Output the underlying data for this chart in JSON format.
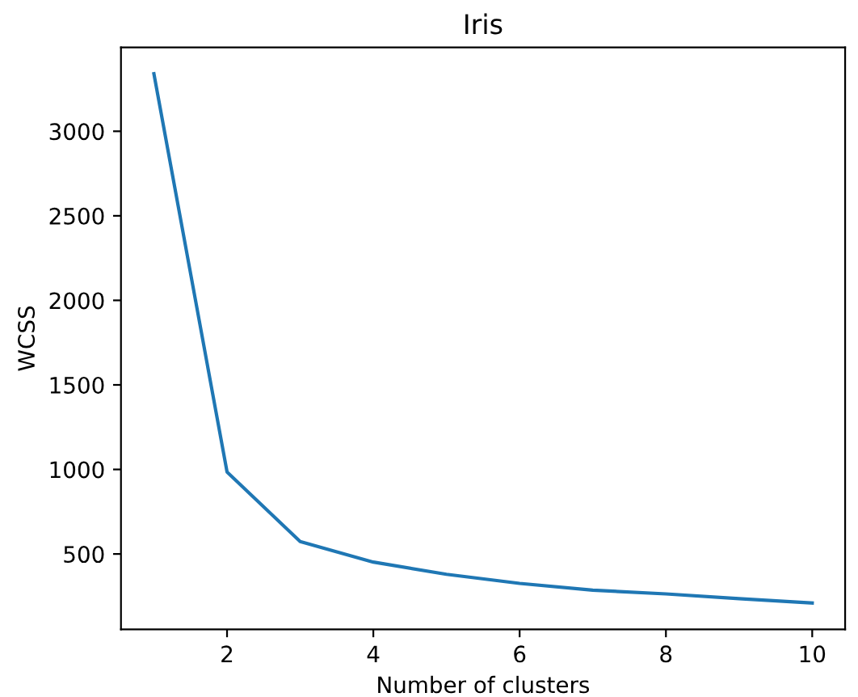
{
  "chart_data": {
    "type": "line",
    "title": "Iris",
    "xlabel": "Number of clusters",
    "ylabel": "WCSS",
    "x": [
      1,
      2,
      3,
      4,
      5,
      6,
      7,
      8,
      9,
      10
    ],
    "series": [
      {
        "color": "#1f77b4",
        "values": [
          3340,
          985,
          573,
          452,
          380,
          326,
          286,
          264,
          236,
          210
        ]
      }
    ],
    "xlim": [
      0.55,
      10.45
    ],
    "xticks": [
      2,
      4,
      6,
      8,
      10
    ],
    "ylim": [
      54,
      3496
    ],
    "yticks": [
      500,
      1000,
      1500,
      2000,
      2500,
      3000
    ],
    "grid": false,
    "legend": false
  }
}
